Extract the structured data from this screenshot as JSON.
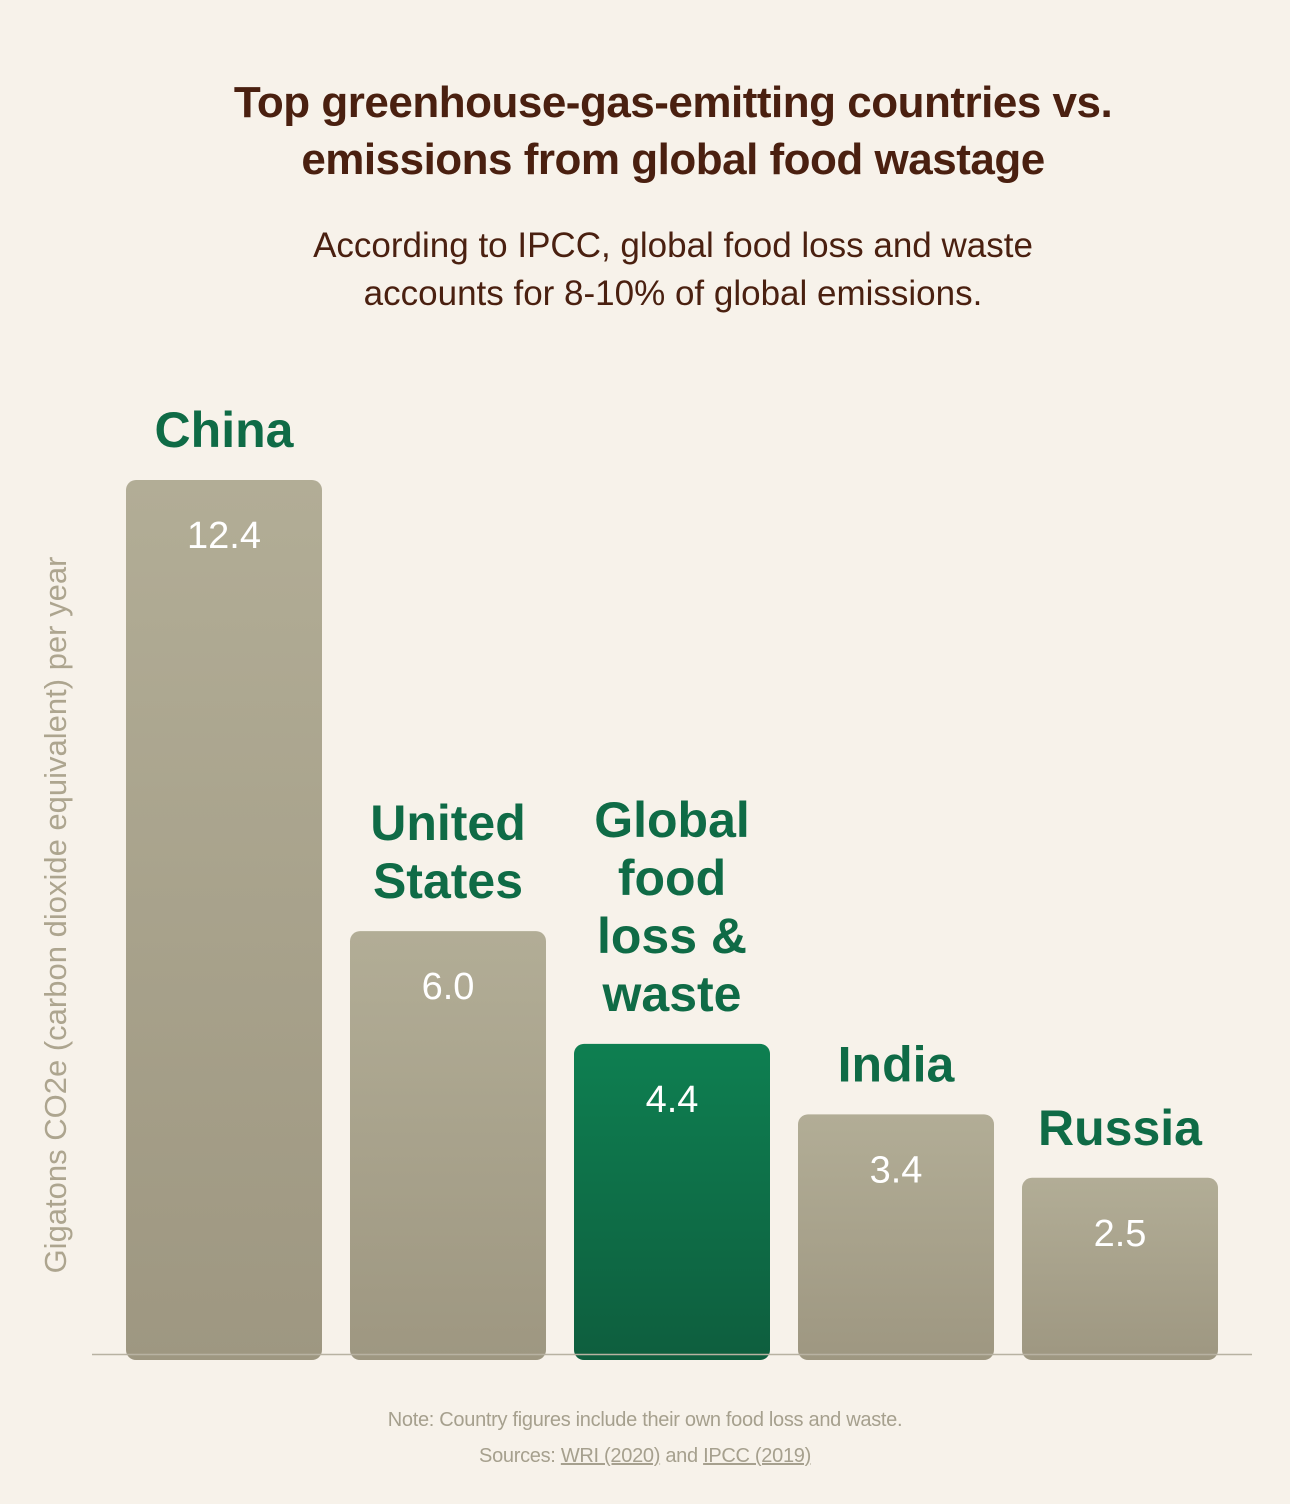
{
  "title_lines": [
    "Top greenhouse-gas-emitting countries vs.",
    "emissions from global food wastage"
  ],
  "subtitle_lines": [
    "According to IPCC, global food loss and waste",
    "accounts for 8-10% of global emissions."
  ],
  "colors": {
    "background": "#f7f2ea",
    "title": "#4a2010",
    "label": "#0f6b46",
    "bar_gray_top": "#b2ad96",
    "bar_gray_bottom": "#9e9781",
    "bar_green_top": "#0e7f51",
    "bar_green_bottom": "#0e5e3e",
    "value_text": "#ffffff",
    "muted_text": "#a6a08e",
    "baseline": "#b8b2a2"
  },
  "chart_data": {
    "type": "bar",
    "title": "Top greenhouse-gas-emitting countries vs. emissions from global food wastage",
    "ylabel": "Gigatons CO2e (carbon dioxide equivalent) per year",
    "xlabel": "",
    "ylim": [
      0,
      12.4
    ],
    "grid": false,
    "categories": [
      "China",
      "United States",
      "Global food loss & waste",
      "India",
      "Russia"
    ],
    "values": [
      12.4,
      6.0,
      4.4,
      3.4,
      2.5
    ],
    "value_labels": [
      "12.4",
      "6.0",
      "4.4",
      "3.4",
      "2.5"
    ],
    "label_lines": [
      [
        "China"
      ],
      [
        "United",
        "States"
      ],
      [
        "Global",
        "food",
        "loss &",
        "waste"
      ],
      [
        "India"
      ],
      [
        "Russia"
      ]
    ],
    "highlight": [
      false,
      false,
      true,
      false,
      false
    ]
  },
  "footer": {
    "note": "Note: Country figures include their own food loss and waste.",
    "sources_prefix": "Sources:",
    "source_1": "WRI (2020)",
    "sources_and": "and",
    "source_2": "IPCC (2019)"
  }
}
